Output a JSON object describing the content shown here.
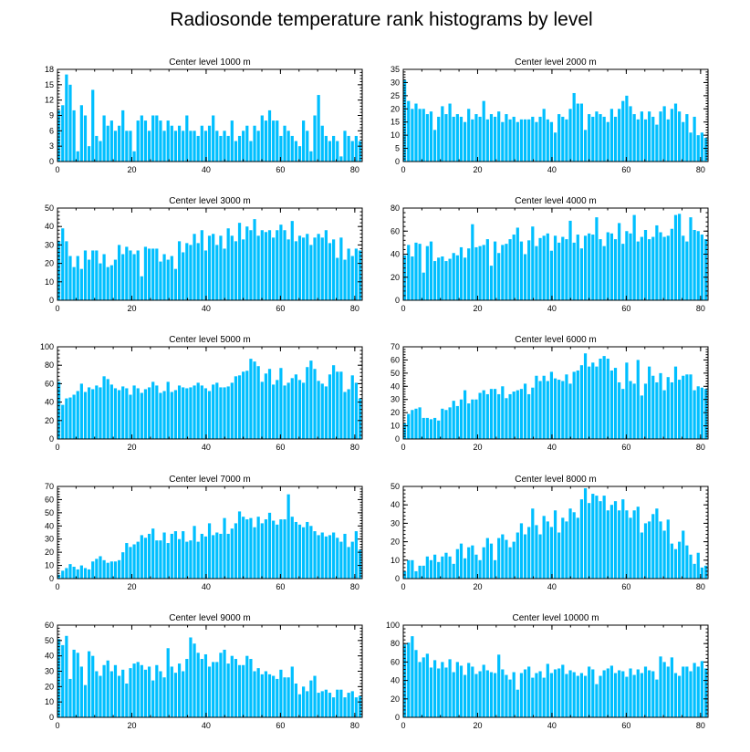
{
  "title": "Radiosonde temperature rank histograms by level",
  "bar_color": "#00bfff",
  "chart_data": [
    {
      "type": "bar",
      "title": "Center level 1000 m",
      "ylim": [
        0,
        18
      ],
      "yticks": [
        0,
        3,
        6,
        9,
        12,
        15,
        18
      ],
      "xlim": [
        0,
        82
      ],
      "xticks": [
        0,
        20,
        40,
        60,
        80
      ],
      "values": [
        10,
        11,
        17,
        15,
        10,
        2,
        11,
        9,
        3,
        14,
        5,
        4,
        9,
        7,
        8,
        6,
        7,
        10,
        6,
        6,
        2,
        8,
        9,
        8,
        6,
        9,
        9,
        8,
        6,
        8,
        7,
        6,
        7,
        6,
        9,
        6,
        6,
        5,
        7,
        6,
        7,
        9,
        6,
        5,
        6,
        5,
        8,
        4,
        5,
        6,
        7,
        4,
        7,
        6,
        9,
        8,
        10,
        8,
        8,
        5,
        7,
        6,
        5,
        4,
        3,
        8,
        6,
        2,
        9,
        13,
        7,
        5,
        4,
        5,
        4,
        1,
        6,
        5,
        4,
        5,
        4
      ]
    },
    {
      "type": "bar",
      "title": "Center level 2000 m",
      "ylim": [
        0,
        35
      ],
      "yticks": [
        0,
        5,
        10,
        15,
        20,
        25,
        30,
        35
      ],
      "xlim": [
        0,
        82
      ],
      "xticks": [
        0,
        20,
        40,
        60,
        80
      ],
      "values": [
        31,
        23,
        20,
        22,
        20,
        20,
        18,
        19,
        12,
        17,
        21,
        18,
        22,
        17,
        18,
        17,
        15,
        20,
        16,
        18,
        17,
        23,
        16,
        18,
        17,
        19,
        15,
        18,
        16,
        17,
        15,
        16,
        16,
        16,
        17,
        15,
        17,
        20,
        16,
        15,
        11,
        18,
        17,
        16,
        20,
        26,
        22,
        22,
        12,
        18,
        17,
        19,
        18,
        17,
        15,
        20,
        17,
        20,
        23,
        25,
        21,
        18,
        16,
        19,
        16,
        19,
        17,
        14,
        19,
        21,
        16,
        20,
        22,
        19,
        15,
        18,
        11,
        17,
        10,
        11,
        9
      ]
    },
    {
      "type": "bar",
      "title": "Center level 3000 m",
      "ylim": [
        0,
        50
      ],
      "yticks": [
        0,
        10,
        20,
        30,
        40,
        50
      ],
      "xlim": [
        0,
        82
      ],
      "xticks": [
        0,
        20,
        40,
        60,
        80
      ],
      "values": [
        32,
        39,
        32,
        24,
        18,
        24,
        17,
        27,
        22,
        27,
        27,
        20,
        25,
        18,
        19,
        22,
        30,
        25,
        29,
        27,
        25,
        27,
        13,
        29,
        28,
        28,
        28,
        21,
        25,
        22,
        24,
        17,
        32,
        26,
        31,
        30,
        36,
        31,
        38,
        27,
        35,
        36,
        30,
        35,
        28,
        39,
        35,
        32,
        42,
        33,
        40,
        38,
        44,
        35,
        38,
        37,
        38,
        34,
        38,
        41,
        38,
        33,
        43,
        32,
        35,
        34,
        36,
        30,
        34,
        36,
        34,
        38,
        31,
        33,
        23,
        34,
        22,
        28,
        24,
        28,
        27
      ]
    },
    {
      "type": "bar",
      "title": "Center level 4000 m",
      "ylim": [
        0,
        80
      ],
      "yticks": [
        0,
        20,
        40,
        60,
        80
      ],
      "xlim": [
        0,
        82
      ],
      "xticks": [
        0,
        20,
        40,
        60,
        80
      ],
      "values": [
        39,
        48,
        38,
        50,
        49,
        24,
        47,
        51,
        34,
        37,
        38,
        34,
        36,
        41,
        39,
        46,
        37,
        45,
        66,
        46,
        47,
        48,
        53,
        30,
        51,
        41,
        48,
        49,
        53,
        57,
        63,
        51,
        40,
        52,
        64,
        47,
        54,
        56,
        58,
        43,
        56,
        50,
        55,
        53,
        69,
        50,
        57,
        45,
        56,
        58,
        57,
        72,
        53,
        47,
        59,
        58,
        53,
        67,
        49,
        60,
        58,
        74,
        51,
        55,
        61,
        53,
        55,
        65,
        59,
        55,
        56,
        62,
        74,
        75,
        56,
        51,
        72,
        61,
        60,
        57,
        53
      ]
    },
    {
      "type": "bar",
      "title": "Center level 5000 m",
      "ylim": [
        0,
        100
      ],
      "yticks": [
        0,
        20,
        40,
        60,
        80,
        100
      ],
      "xlim": [
        0,
        82
      ],
      "xticks": [
        0,
        20,
        40,
        60,
        80
      ],
      "values": [
        62,
        37,
        44,
        45,
        48,
        52,
        60,
        51,
        56,
        54,
        58,
        56,
        68,
        65,
        59,
        55,
        53,
        57,
        55,
        48,
        58,
        55,
        50,
        54,
        56,
        62,
        58,
        50,
        52,
        62,
        51,
        53,
        58,
        56,
        55,
        56,
        58,
        61,
        58,
        55,
        52,
        59,
        61,
        56,
        56,
        57,
        61,
        68,
        69,
        73,
        74,
        87,
        84,
        79,
        62,
        71,
        76,
        59,
        64,
        77,
        58,
        61,
        66,
        70,
        64,
        61,
        78,
        85,
        76,
        63,
        60,
        57,
        70,
        80,
        73,
        73,
        51,
        54,
        69,
        61,
        44
      ]
    },
    {
      "type": "bar",
      "title": "Center level 6000 m",
      "ylim": [
        0,
        70
      ],
      "yticks": [
        0,
        10,
        20,
        30,
        40,
        50,
        60,
        70
      ],
      "xlim": [
        0,
        82
      ],
      "xticks": [
        0,
        20,
        40,
        60,
        80
      ],
      "values": [
        12,
        19,
        22,
        23,
        24,
        16,
        16,
        15,
        16,
        14,
        23,
        22,
        24,
        29,
        25,
        30,
        37,
        27,
        30,
        30,
        35,
        37,
        34,
        38,
        38,
        34,
        40,
        31,
        34,
        36,
        37,
        38,
        42,
        34,
        39,
        48,
        44,
        48,
        44,
        51,
        46,
        45,
        44,
        49,
        42,
        51,
        52,
        56,
        65,
        55,
        58,
        55,
        61,
        63,
        61,
        52,
        54,
        43,
        38,
        58,
        44,
        42,
        60,
        33,
        42,
        55,
        48,
        43,
        50,
        37,
        47,
        43,
        55,
        45,
        48,
        49,
        49,
        37,
        40,
        39,
        38
      ]
    },
    {
      "type": "bar",
      "title": "Center level 7000 m",
      "ylim": [
        0,
        70
      ],
      "yticks": [
        0,
        10,
        20,
        30,
        40,
        50,
        60,
        70
      ],
      "xlim": [
        0,
        82
      ],
      "xticks": [
        0,
        20,
        40,
        60,
        80
      ],
      "values": [
        3,
        6,
        8,
        11,
        9,
        7,
        10,
        8,
        7,
        13,
        15,
        17,
        14,
        12,
        13,
        13,
        14,
        20,
        27,
        24,
        26,
        28,
        33,
        31,
        34,
        38,
        29,
        29,
        35,
        27,
        34,
        36,
        30,
        36,
        28,
        29,
        40,
        28,
        34,
        32,
        42,
        33,
        35,
        34,
        46,
        34,
        38,
        42,
        51,
        47,
        45,
        46,
        39,
        47,
        42,
        45,
        50,
        44,
        41,
        45,
        45,
        64,
        47,
        43,
        41,
        39,
        43,
        40,
        36,
        33,
        35,
        32,
        33,
        35,
        31,
        28,
        34,
        24,
        28,
        36,
        22
      ]
    },
    {
      "type": "bar",
      "title": "Center level 8000 m",
      "ylim": [
        0,
        50
      ],
      "yticks": [
        0,
        10,
        20,
        30,
        40,
        50
      ],
      "xlim": [
        0,
        82
      ],
      "xticks": [
        0,
        20,
        40,
        60,
        80
      ],
      "values": [
        4,
        10,
        10,
        4,
        7,
        7,
        12,
        10,
        13,
        9,
        12,
        14,
        12,
        8,
        16,
        19,
        11,
        17,
        18,
        13,
        10,
        17,
        22,
        19,
        10,
        22,
        24,
        21,
        17,
        20,
        25,
        30,
        24,
        28,
        38,
        29,
        24,
        34,
        31,
        28,
        37,
        25,
        33,
        31,
        38,
        36,
        33,
        43,
        49,
        41,
        46,
        45,
        42,
        45,
        37,
        40,
        42,
        37,
        43,
        37,
        33,
        37,
        39,
        25,
        30,
        31,
        35,
        38,
        31,
        26,
        32,
        19,
        16,
        20,
        26,
        18,
        13,
        8,
        14,
        6,
        7
      ]
    },
    {
      "type": "bar",
      "title": "Center level 9000 m",
      "ylim": [
        0,
        60
      ],
      "yticks": [
        0,
        10,
        20,
        30,
        40,
        50,
        60
      ],
      "xlim": [
        0,
        82
      ],
      "xticks": [
        0,
        20,
        40,
        60,
        80
      ],
      "values": [
        51,
        47,
        53,
        25,
        44,
        42,
        33,
        21,
        43,
        40,
        30,
        27,
        34,
        37,
        30,
        34,
        27,
        31,
        22,
        32,
        35,
        36,
        34,
        31,
        33,
        24,
        34,
        30,
        26,
        45,
        33,
        29,
        35,
        30,
        38,
        52,
        48,
        42,
        38,
        41,
        33,
        36,
        36,
        42,
        44,
        35,
        40,
        38,
        34,
        34,
        40,
        38,
        30,
        32,
        28,
        30,
        28,
        27,
        25,
        31,
        26,
        26,
        33,
        22,
        15,
        20,
        17,
        24,
        27,
        16,
        17,
        18,
        16,
        13,
        18,
        18,
        13,
        16,
        17,
        13,
        14
      ]
    },
    {
      "type": "bar",
      "title": "Center level 10000 m",
      "ylim": [
        0,
        100
      ],
      "yticks": [
        0,
        20,
        40,
        60,
        80,
        100
      ],
      "xlim": [
        0,
        82
      ],
      "xticks": [
        0,
        20,
        40,
        60,
        80
      ],
      "values": [
        79,
        81,
        88,
        73,
        60,
        65,
        69,
        54,
        62,
        53,
        60,
        54,
        63,
        49,
        60,
        56,
        46,
        59,
        55,
        47,
        50,
        57,
        51,
        49,
        48,
        68,
        52,
        46,
        41,
        49,
        30,
        48,
        52,
        55,
        43,
        48,
        50,
        43,
        58,
        48,
        52,
        53,
        57,
        47,
        51,
        49,
        45,
        48,
        45,
        55,
        52,
        36,
        45,
        51,
        53,
        56,
        48,
        51,
        50,
        44,
        53,
        46,
        52,
        48,
        55,
        51,
        50,
        41,
        66,
        60,
        55,
        65,
        48,
        45,
        55,
        55,
        50,
        59,
        55,
        61,
        53
      ]
    }
  ]
}
